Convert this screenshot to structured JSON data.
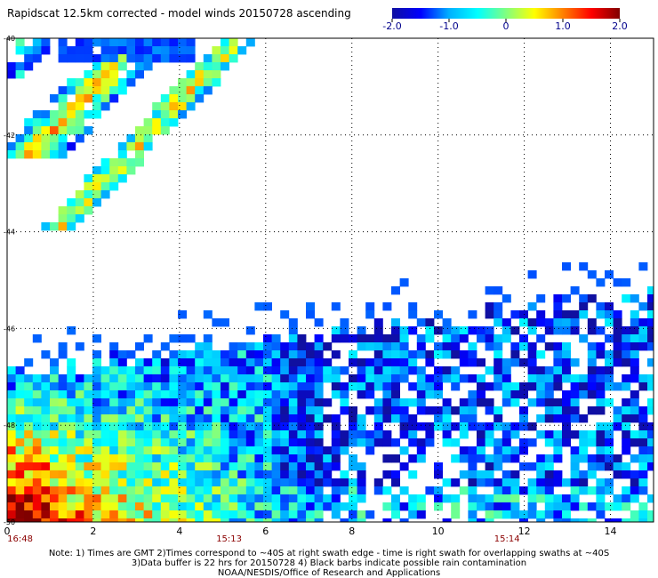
{
  "title": "Rapidscat 12.5km corrected - model winds 20150728 ascending",
  "chart_data": {
    "type": "heatmap",
    "title": "Rapidscat 12.5km corrected - model winds 20150728 ascending",
    "colorbar": {
      "min": -2.0,
      "max": 2.0,
      "ticks": [
        "-2.0",
        "-1.0",
        "0",
        "1.0",
        "2.0"
      ],
      "colors": [
        "#1010a0",
        "#0000ff",
        "#00b0ff",
        "#00ffff",
        "#80ff80",
        "#ffff00",
        "#ff8000",
        "#ff0000",
        "#800000"
      ]
    },
    "xaxis": {
      "range": [
        0,
        15
      ],
      "ticks": [
        "0",
        "2",
        "4",
        "6",
        "8",
        "10",
        "12",
        "14"
      ]
    },
    "yaxis": {
      "range": [
        -40,
        -50
      ],
      "ticks": [
        "-40",
        "-42",
        "-44",
        "-46",
        "-48",
        "-50"
      ]
    },
    "time_labels": [
      "16:48",
      "15:13",
      "15:14"
    ],
    "grid": true
  },
  "notes": {
    "line1": "Note: 1) Times are GMT 2)Times correspond to ~40S at right swath edge - time is right swath for overlapping swaths at ~40S",
    "line2": "3)Data buffer is 22 hrs for 20150728 4) Black barbs indicate possible rain contamination",
    "line3": "NOAA/NESDIS/Office of Research and Applications"
  }
}
